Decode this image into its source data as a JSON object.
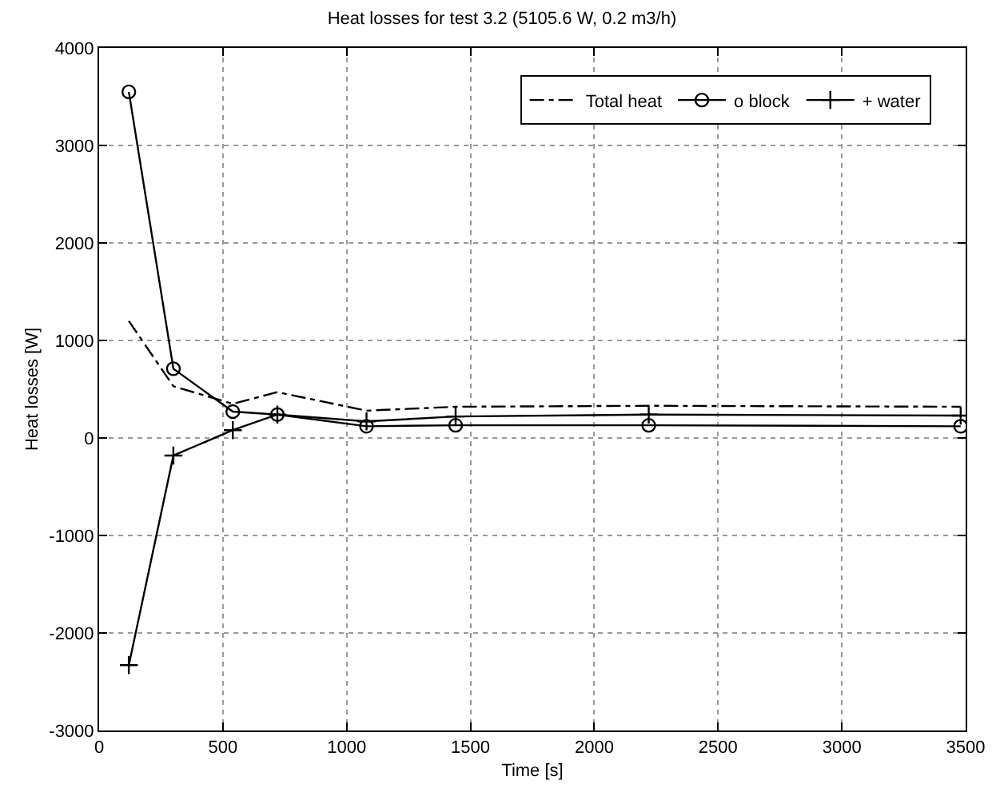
{
  "chart_data": {
    "type": "line",
    "title": "Heat losses for test 3.2 (5105.6 W, 0.2 m3/h)",
    "xlabel": "Time [s]",
    "ylabel": "Heat losses [W]",
    "x": [
      120,
      300,
      540,
      720,
      1080,
      1440,
      2220,
      3480
    ],
    "series": [
      {
        "name": "Total heat",
        "color": "#000000",
        "line_style": "dashed",
        "marker": "none",
        "values": [
          1200,
          530,
          350,
          470,
          280,
          320,
          330,
          320
        ]
      },
      {
        "name": "o block",
        "color": "#000000",
        "line_style": "solid",
        "marker": "circle",
        "values": [
          3550,
          710,
          270,
          240,
          120,
          130,
          130,
          120
        ]
      },
      {
        "name": "+ water",
        "color": "#000000",
        "line_style": "solid",
        "marker": "cross",
        "values": [
          -2330,
          -180,
          80,
          240,
          170,
          220,
          240,
          230
        ]
      }
    ],
    "xlim": [
      0,
      3500
    ],
    "xticks": [
      0,
      500,
      1000,
      1500,
      2000,
      2500,
      3000,
      3500
    ],
    "ylim": [
      -3000,
      4000
    ],
    "yticks": [
      -3000,
      -2000,
      -1000,
      0,
      1000,
      2000,
      3000,
      4000
    ],
    "grid": true,
    "legend": "top right"
  }
}
